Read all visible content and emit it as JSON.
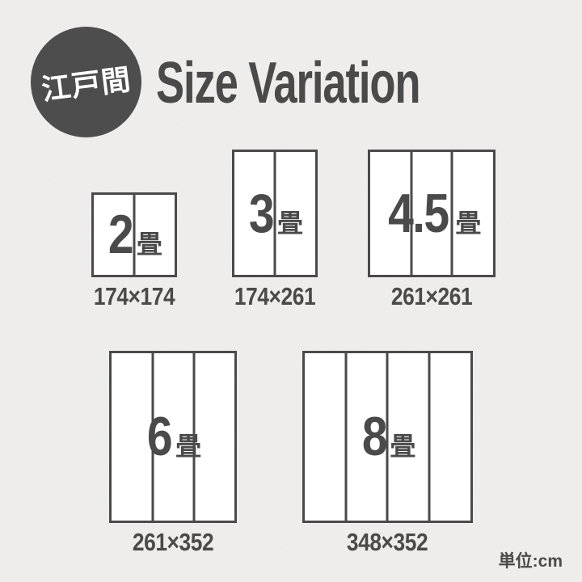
{
  "badge": {
    "label": "江戸間"
  },
  "title": "Size Variation",
  "unit_note": "単位:cm",
  "colors": {
    "ink": "#4a4a4a",
    "badge_bg": "#4d4d4d",
    "paper": "#efeeec",
    "box_fill": "#ffffff",
    "badge_text": "#ffffff"
  },
  "sizes": [
    {
      "number": "2",
      "suffix": "畳",
      "dims": "174×174",
      "width_cm": 174,
      "height_cm": 174,
      "panels": 2,
      "row": 1
    },
    {
      "number": "3",
      "suffix": "畳",
      "dims": "174×261",
      "width_cm": 174,
      "height_cm": 261,
      "panels": 2,
      "row": 1
    },
    {
      "number": "4.5",
      "suffix": "畳",
      "dims": "261×261",
      "width_cm": 261,
      "height_cm": 261,
      "panels": 3,
      "row": 1
    },
    {
      "number": "6",
      "suffix": "畳",
      "dims": "261×352",
      "width_cm": 261,
      "height_cm": 352,
      "panels": 3,
      "row": 2
    },
    {
      "number": "8",
      "suffix": "畳",
      "dims": "348×352",
      "width_cm": 348,
      "height_cm": 352,
      "panels": 4,
      "row": 2
    }
  ]
}
